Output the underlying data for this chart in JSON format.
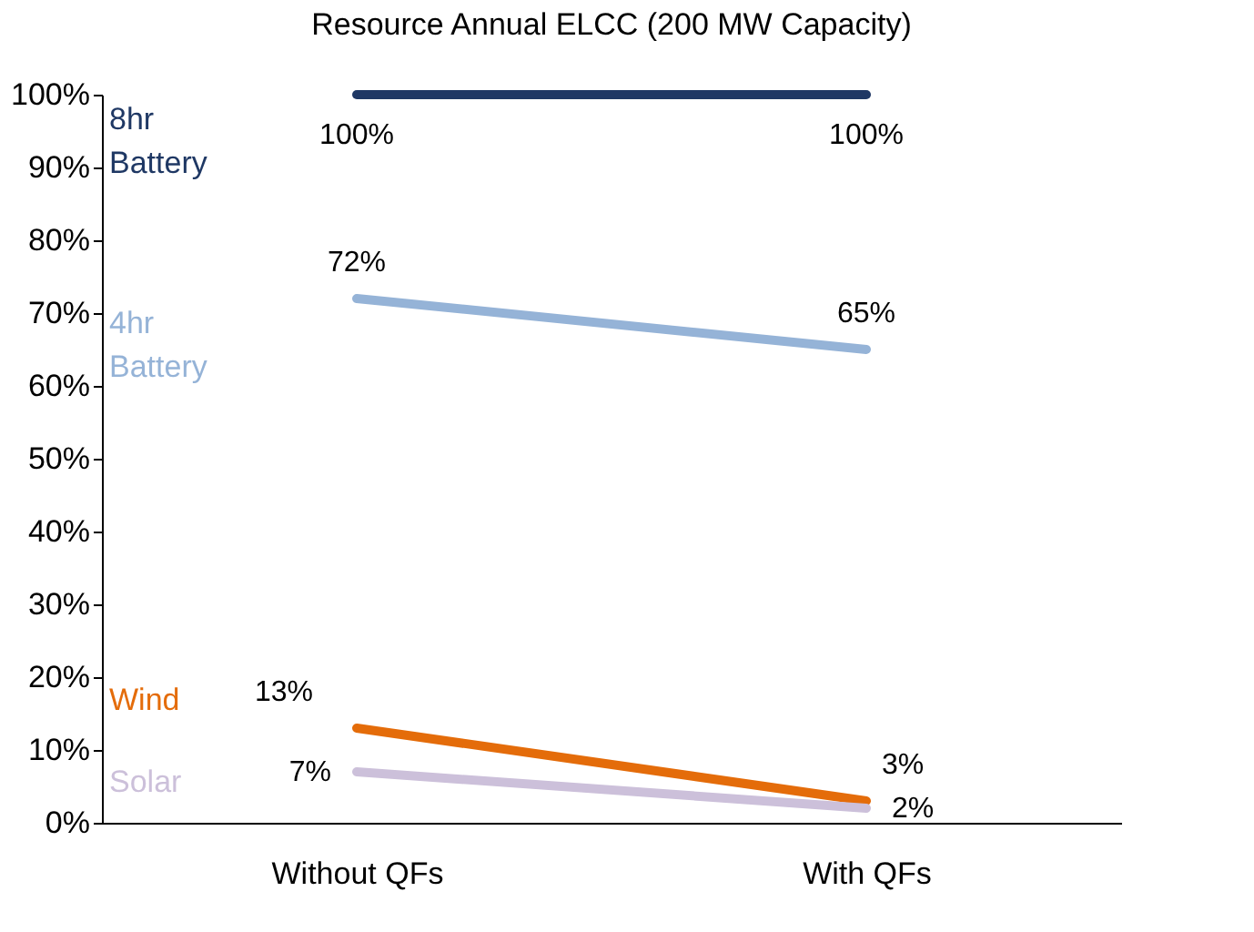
{
  "chart_data": {
    "type": "line",
    "title": "Resource Annual ELCC (200 MW Capacity)",
    "categories": [
      "Without QFs",
      "With QFs"
    ],
    "series": [
      {
        "name": "8hr Battery",
        "color": "#1f3864",
        "values": [
          100,
          100
        ],
        "value_labels": [
          "100%",
          "100%"
        ]
      },
      {
        "name": "4hr Battery",
        "color": "#95b3d7",
        "values": [
          72,
          65
        ],
        "value_labels": [
          "72%",
          "65%"
        ]
      },
      {
        "name": "Wind",
        "color": "#e46c0a",
        "values": [
          13,
          3
        ],
        "value_labels": [
          "13%",
          "3%"
        ]
      },
      {
        "name": "Solar",
        "color": "#ccc0da",
        "values": [
          7,
          2
        ],
        "value_labels": [
          "7%",
          "2%"
        ]
      }
    ],
    "ylim": [
      0,
      100
    ],
    "yticks": [
      {
        "value": 0,
        "label": "0%"
      },
      {
        "value": 10,
        "label": "10%"
      },
      {
        "value": 20,
        "label": "20%"
      },
      {
        "value": 30,
        "label": "30%"
      },
      {
        "value": 40,
        "label": "40%"
      },
      {
        "value": 50,
        "label": "50%"
      },
      {
        "value": 60,
        "label": "60%"
      },
      {
        "value": 70,
        "label": "70%"
      },
      {
        "value": 80,
        "label": "80%"
      },
      {
        "value": 90,
        "label": "90%"
      },
      {
        "value": 100,
        "label": "100%"
      }
    ],
    "grid": false,
    "marker": "none",
    "line_style": "solid"
  }
}
